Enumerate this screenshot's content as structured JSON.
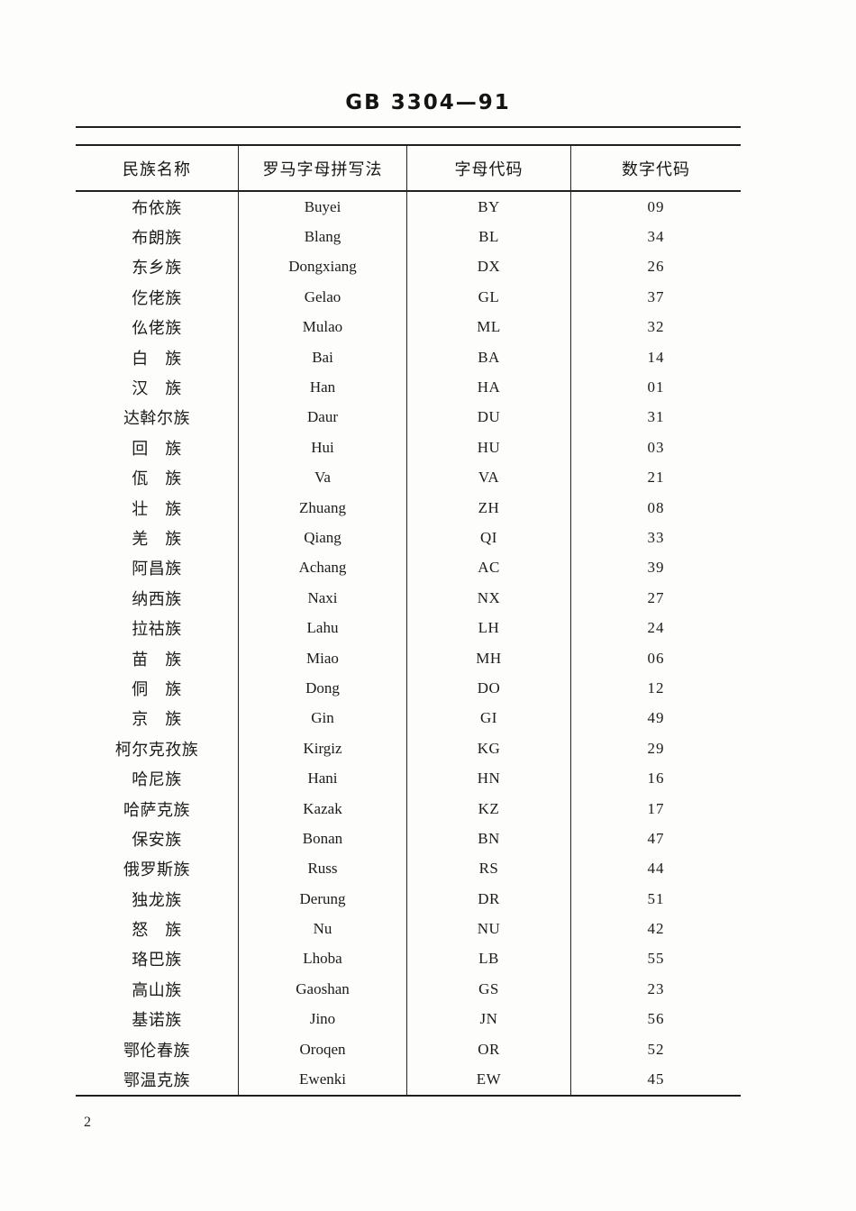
{
  "document": {
    "standard_code": "GB 3304—91",
    "page_number": "2"
  },
  "table": {
    "headers": [
      "民族名称",
      "罗马字母拼写法",
      "字母代码",
      "数字代码"
    ],
    "rows": [
      [
        "布依族",
        "Buyei",
        "BY",
        "09"
      ],
      [
        "布朗族",
        "Blang",
        "BL",
        "34"
      ],
      [
        "东乡族",
        "Dongxiang",
        "DX",
        "26"
      ],
      [
        "仡佬族",
        "Gelao",
        "GL",
        "37"
      ],
      [
        "仫佬族",
        "Mulao",
        "ML",
        "32"
      ],
      [
        "白　族",
        "Bai",
        "BA",
        "14"
      ],
      [
        "汉　族",
        "Han",
        "HA",
        "01"
      ],
      [
        "达斡尔族",
        "Daur",
        "DU",
        "31"
      ],
      [
        "回　族",
        "Hui",
        "HU",
        "03"
      ],
      [
        "佤　族",
        "Va",
        "VA",
        "21"
      ],
      [
        "壮　族",
        "Zhuang",
        "ZH",
        "08"
      ],
      [
        "羌　族",
        "Qiang",
        "QI",
        "33"
      ],
      [
        "阿昌族",
        "Achang",
        "AC",
        "39"
      ],
      [
        "纳西族",
        "Naxi",
        "NX",
        "27"
      ],
      [
        "拉祜族",
        "Lahu",
        "LH",
        "24"
      ],
      [
        "苗　族",
        "Miao",
        "MH",
        "06"
      ],
      [
        "侗　族",
        "Dong",
        "DO",
        "12"
      ],
      [
        "京　族",
        "Gin",
        "GI",
        "49"
      ],
      [
        "柯尔克孜族",
        "Kirgiz",
        "KG",
        "29"
      ],
      [
        "哈尼族",
        "Hani",
        "HN",
        "16"
      ],
      [
        "哈萨克族",
        "Kazak",
        "KZ",
        "17"
      ],
      [
        "保安族",
        "Bonan",
        "BN",
        "47"
      ],
      [
        "俄罗斯族",
        "Russ",
        "RS",
        "44"
      ],
      [
        "独龙族",
        "Derung",
        "DR",
        "51"
      ],
      [
        "怒　族",
        "Nu",
        "NU",
        "42"
      ],
      [
        "珞巴族",
        "Lhoba",
        "LB",
        "55"
      ],
      [
        "高山族",
        "Gaoshan",
        "GS",
        "23"
      ],
      [
        "基诺族",
        "Jino",
        "JN",
        "56"
      ],
      [
        "鄂伦春族",
        "Oroqen",
        "OR",
        "52"
      ],
      [
        "鄂温克族",
        "Ewenki",
        "EW",
        "45"
      ]
    ]
  }
}
